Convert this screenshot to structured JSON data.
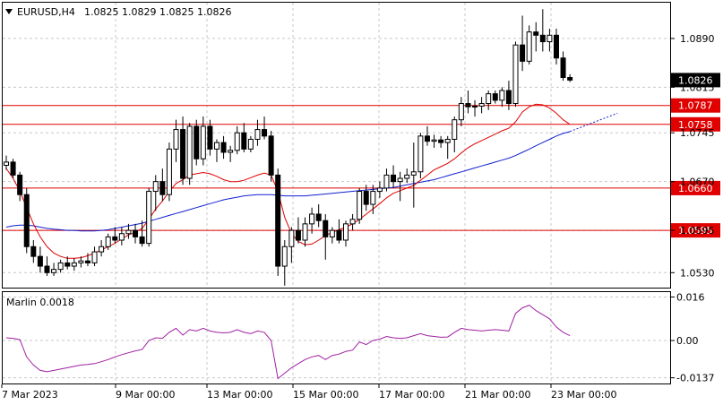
{
  "symbol": {
    "name": "EURUSD,H4",
    "ohlc": "1.0825 1.0829 1.0825 1.0826"
  },
  "price_axis": {
    "ticks": [
      "1.0890",
      "1.0815",
      "1.0745",
      "1.0670",
      "1.0595",
      "1.0530"
    ],
    "ylim": [
      1.0507,
      1.0945
    ]
  },
  "indicator": {
    "label": "Marlin 0.0018",
    "ticks": [
      "0.016",
      "0.00",
      "-0.0137"
    ],
    "ylim": [
      -0.0158,
      0.0178
    ]
  },
  "time_axis": {
    "labels": [
      "7 Mar 2023",
      "9 Mar 00:00",
      "13 Mar 00:00",
      "15 Mar 00:00",
      "17 Mar 00:00",
      "21 Mar 00:00",
      "23 Mar 00:00"
    ]
  },
  "levels": [
    {
      "value": "1.0787",
      "color": "#e00000"
    },
    {
      "value": "1.0758",
      "color": "#e00000"
    },
    {
      "value": "1.0660",
      "color": "#e00000"
    },
    {
      "value": "1.0595",
      "color": "#e00000"
    }
  ],
  "current_price": {
    "value": "1.0826"
  },
  "colors": {
    "bull": "#ffffff",
    "bear": "#000000",
    "wick": "#000000",
    "ma_fast": "#e00000",
    "ma_slow": "#1020d0",
    "oscillator": "#a020a0",
    "grid": "#c8c8c8"
  },
  "chart_data": {
    "type": "candlestick",
    "candles": [
      [
        1.0695,
        1.071,
        1.0688,
        1.07
      ],
      [
        1.07,
        1.0705,
        1.0675,
        1.068
      ],
      [
        1.068,
        1.0685,
        1.064,
        1.065
      ],
      [
        1.065,
        1.066,
        1.056,
        1.057
      ],
      [
        1.057,
        1.058,
        1.0545,
        1.0555
      ],
      [
        1.0555,
        1.057,
        1.053,
        1.054
      ],
      [
        1.054,
        1.0555,
        1.0525,
        1.053
      ],
      [
        1.053,
        1.0545,
        1.0525,
        1.0535
      ],
      [
        1.0535,
        1.055,
        1.053,
        1.0545
      ],
      [
        1.0545,
        1.0555,
        1.0535,
        1.054
      ],
      [
        1.054,
        1.0552,
        1.0533,
        1.0545
      ],
      [
        1.0545,
        1.0555,
        1.0538,
        1.0548
      ],
      [
        1.0548,
        1.056,
        1.054,
        1.0545
      ],
      [
        1.0545,
        1.057,
        1.054,
        1.0562
      ],
      [
        1.0562,
        1.058,
        1.0555,
        1.057
      ],
      [
        1.057,
        1.059,
        1.0565,
        1.0585
      ],
      [
        1.0585,
        1.06,
        1.0575,
        1.058
      ],
      [
        1.058,
        1.06,
        1.0572,
        1.059
      ],
      [
        1.059,
        1.0605,
        1.0582,
        1.0595
      ],
      [
        1.0595,
        1.0605,
        1.0575,
        1.0585
      ],
      [
        1.0585,
        1.061,
        1.057,
        1.0575
      ],
      [
        1.0575,
        1.066,
        1.057,
        1.0655
      ],
      [
        1.0655,
        1.068,
        1.0625,
        1.067
      ],
      [
        1.067,
        1.069,
        1.064,
        1.065
      ],
      [
        1.065,
        1.073,
        1.064,
        1.072
      ],
      [
        1.072,
        1.0765,
        1.07,
        1.075
      ],
      [
        1.075,
        1.077,
        1.0665,
        1.0675
      ],
      [
        1.0675,
        1.076,
        1.0665,
        1.0755
      ],
      [
        1.0755,
        1.0765,
        1.0695,
        1.0705
      ],
      [
        1.0705,
        1.077,
        1.0695,
        1.0755
      ],
      [
        1.0755,
        1.0765,
        1.071,
        1.072
      ],
      [
        1.072,
        1.0735,
        1.07,
        1.073
      ],
      [
        1.073,
        1.074,
        1.0705,
        1.0715
      ],
      [
        1.0715,
        1.0725,
        1.07,
        1.0718
      ],
      [
        1.0718,
        1.0755,
        1.0712,
        1.0745
      ],
      [
        1.0745,
        1.076,
        1.0715,
        1.072
      ],
      [
        1.072,
        1.074,
        1.0715,
        1.0735
      ],
      [
        1.0735,
        1.0765,
        1.0725,
        1.075
      ],
      [
        1.075,
        1.077,
        1.0735,
        1.074
      ],
      [
        1.074,
        1.0748,
        1.067,
        1.068
      ],
      [
        1.068,
        1.069,
        1.0525,
        1.054
      ],
      [
        1.054,
        1.058,
        1.051,
        1.057
      ],
      [
        1.057,
        1.06,
        1.0545,
        1.0595
      ],
      [
        1.0595,
        1.0615,
        1.0575,
        1.058
      ],
      [
        1.058,
        1.0615,
        1.057,
        1.0605
      ],
      [
        1.0605,
        1.063,
        1.059,
        1.062
      ],
      [
        1.062,
        1.0635,
        1.06,
        1.061
      ],
      [
        1.061,
        1.062,
        1.055,
        1.0585
      ],
      [
        1.0585,
        1.06,
        1.0575,
        1.0595
      ],
      [
        1.0595,
        1.0612,
        1.0575,
        1.058
      ],
      [
        1.058,
        1.061,
        1.057,
        1.0605
      ],
      [
        1.0605,
        1.062,
        1.0595,
        1.0612
      ],
      [
        1.0612,
        1.066,
        1.0605,
        1.0655
      ],
      [
        1.0655,
        1.0665,
        1.0625,
        1.0635
      ],
      [
        1.0635,
        1.0665,
        1.062,
        1.0655
      ],
      [
        1.0655,
        1.067,
        1.0645,
        1.066
      ],
      [
        1.066,
        1.069,
        1.0655,
        1.068
      ],
      [
        1.068,
        1.0695,
        1.066,
        1.067
      ],
      [
        1.067,
        1.0685,
        1.064,
        1.0675
      ],
      [
        1.0675,
        1.069,
        1.0668,
        1.068
      ],
      [
        1.068,
        1.073,
        1.063,
        1.0685
      ],
      [
        1.0685,
        1.0745,
        1.0675,
        1.074
      ],
      [
        1.074,
        1.0755,
        1.0725,
        1.0732
      ],
      [
        1.0732,
        1.0742,
        1.0722,
        1.0734
      ],
      [
        1.0734,
        1.074,
        1.0722,
        1.073
      ],
      [
        1.073,
        1.074,
        1.0705,
        1.0735
      ],
      [
        1.0735,
        1.077,
        1.0715,
        1.0765
      ],
      [
        1.0765,
        1.08,
        1.0755,
        1.079
      ],
      [
        1.079,
        1.081,
        1.0775,
        1.0785
      ],
      [
        1.0785,
        1.0795,
        1.077,
        1.0786
      ],
      [
        1.0786,
        1.08,
        1.0775,
        1.079
      ],
      [
        1.079,
        1.081,
        1.078,
        1.0805
      ],
      [
        1.0805,
        1.081,
        1.079,
        1.0795
      ],
      [
        1.0795,
        1.0815,
        1.0785,
        1.081
      ],
      [
        1.081,
        1.0825,
        1.078,
        1.079
      ],
      [
        1.079,
        1.0885,
        1.0785,
        1.088
      ],
      [
        1.088,
        1.0925,
        1.084,
        1.0855
      ],
      [
        1.0855,
        1.091,
        1.085,
        1.09
      ],
      [
        1.09,
        1.0915,
        1.087,
        1.0895
      ],
      [
        1.0895,
        1.0935,
        1.087,
        1.0885
      ],
      [
        1.0885,
        1.0905,
        1.087,
        1.0895
      ],
      [
        1.0895,
        1.0905,
        1.085,
        1.086
      ],
      [
        1.086,
        1.087,
        1.0825,
        1.083
      ],
      [
        1.083,
        1.0835,
        1.0823,
        1.0826
      ]
    ],
    "ma_fast": [
      1.069,
      1.0675,
      1.0655,
      1.063,
      1.0605,
      1.0585,
      1.057,
      1.056,
      1.0555,
      1.0552,
      1.0552,
      1.0553,
      1.0556,
      1.056,
      1.0565,
      1.057,
      1.0575,
      1.0582,
      1.0588,
      1.0592,
      1.0598,
      1.0612,
      1.0628,
      1.064,
      1.0655,
      1.0667,
      1.0673,
      1.068,
      1.0682,
      1.0684,
      1.0682,
      1.0678,
      1.0673,
      1.067,
      1.067,
      1.0672,
      1.0676,
      1.068,
      1.0683,
      1.068,
      1.0655,
      1.0615,
      1.059,
      1.0578,
      1.0573,
      1.0574,
      1.058,
      1.0587,
      1.0592,
      1.0596,
      1.06,
      1.0605,
      1.0612,
      1.062,
      1.0628,
      1.0636,
      1.0645,
      1.0652,
      1.0656,
      1.066,
      1.0664,
      1.0672,
      1.068,
      1.0688,
      1.0693,
      1.0698,
      1.0705,
      1.0714,
      1.0722,
      1.0728,
      1.0733,
      1.0738,
      1.0743,
      1.0748,
      1.0752,
      1.0762,
      1.0777,
      1.0785,
      1.0789,
      1.0788,
      1.0783,
      1.0775,
      1.0765,
      1.0758
    ],
    "ma_slow": [
      1.06,
      1.0602,
      1.0603,
      1.0603,
      1.0602,
      1.06,
      1.0598,
      1.0597,
      1.0596,
      1.0595,
      1.0595,
      1.0594,
      1.0594,
      1.0594,
      1.0595,
      1.0596,
      1.0598,
      1.06,
      1.0602,
      1.0604,
      1.0606,
      1.0609,
      1.0612,
      1.0615,
      1.0618,
      1.0621,
      1.0624,
      1.0627,
      1.063,
      1.0633,
      1.0636,
      1.0639,
      1.0642,
      1.0644,
      1.0646,
      1.0648,
      1.0649,
      1.065,
      1.065,
      1.065,
      1.0649,
      1.0648,
      1.0648,
      1.0648,
      1.0648,
      1.0649,
      1.065,
      1.0651,
      1.0652,
      1.0653,
      1.0654,
      1.0655,
      1.0656,
      1.0657,
      1.0658,
      1.0659,
      1.066,
      1.0661,
      1.0663,
      1.0665,
      1.0667,
      1.0669,
      1.0671,
      1.0673,
      1.0676,
      1.0679,
      1.0682,
      1.0685,
      1.0688,
      1.0691,
      1.0694,
      1.0697,
      1.07,
      1.0703,
      1.0706,
      1.071,
      1.0715,
      1.072,
      1.0725,
      1.073,
      1.0735,
      1.074,
      1.0744,
      1.0747
    ],
    "ma_slow_projection": [
      1.0747,
      1.0751,
      1.0755,
      1.0759,
      1.0763,
      1.0767,
      1.0771,
      1.0775
    ],
    "oscillator": [
      0.001,
      0.0008,
      0.0003,
      -0.006,
      -0.009,
      -0.011,
      -0.0115,
      -0.011,
      -0.0105,
      -0.01,
      -0.0095,
      -0.009,
      -0.0088,
      -0.0085,
      -0.0078,
      -0.007,
      -0.006,
      -0.0052,
      -0.0045,
      -0.0038,
      -0.0033,
      0.0,
      0.001,
      0.0008,
      0.003,
      0.0045,
      0.002,
      0.004,
      0.0035,
      0.0045,
      0.0035,
      0.003,
      0.0028,
      0.003,
      0.004,
      0.003,
      0.0025,
      0.0035,
      0.003,
      0.0,
      -0.014,
      -0.012,
      -0.01,
      -0.0085,
      -0.007,
      -0.006,
      -0.0055,
      -0.007,
      -0.0055,
      -0.005,
      -0.004,
      -0.0035,
      -0.0005,
      -0.0015,
      0.0,
      0.0005,
      0.0015,
      0.001,
      0.0008,
      0.001,
      0.0018,
      0.0025,
      0.0018,
      0.0015,
      0.0012,
      0.0013,
      0.003,
      0.0045,
      0.004,
      0.0038,
      0.0035,
      0.0038,
      0.004,
      0.0038,
      0.0035,
      0.01,
      0.012,
      0.013,
      0.011,
      0.0095,
      0.008,
      0.005,
      0.003,
      0.0018
    ]
  }
}
